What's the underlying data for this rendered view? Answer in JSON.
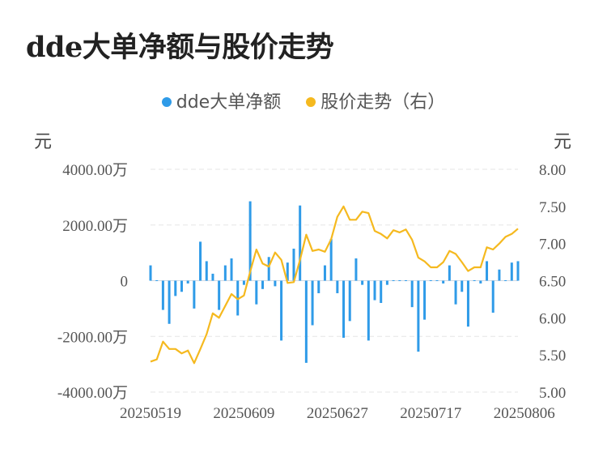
{
  "title": "dde大单净额与股价走势",
  "legend": {
    "items": [
      {
        "label": "dde大单净额",
        "color": "#2f9be8"
      },
      {
        "label": "股价走势（右）",
        "color": "#f5b91f"
      }
    ]
  },
  "units": {
    "left": "元",
    "right": "元"
  },
  "chart_data": {
    "type": "bar+line",
    "title": "dde大单净额与股价走势",
    "left_axis": {
      "ylim": [
        -4000,
        4000
      ],
      "ticks": [
        4000,
        2000,
        0,
        -2000,
        -4000
      ],
      "tick_labels": [
        "4000.00万",
        "2000.00万",
        "0",
        "-2000.00万",
        "-4000.00万"
      ],
      "unit": "元"
    },
    "right_axis": {
      "ylim": [
        5.0,
        8.0
      ],
      "ticks": [
        8.0,
        7.5,
        7.0,
        6.5,
        6.0,
        5.5,
        5.0
      ],
      "tick_labels": [
        "8.00",
        "7.50",
        "7.00",
        "6.50",
        "6.00",
        "5.50",
        "5.00"
      ],
      "unit": "元"
    },
    "x_tick_labels": [
      {
        "index": 0,
        "label": "20250519"
      },
      {
        "index": 15,
        "label": "20250609"
      },
      {
        "index": 30,
        "label": "20250627"
      },
      {
        "index": 45,
        "label": "20250717"
      },
      {
        "index": 60,
        "label": "20250806"
      }
    ],
    "grid": true,
    "legend_position": "top-center",
    "series": [
      {
        "name": "dde大单净额",
        "type": "bar",
        "axis": "left",
        "color": "#2f9be8",
        "values": [
          550,
          0,
          -1050,
          -1550,
          -550,
          -400,
          -100,
          -1000,
          1400,
          700,
          250,
          -1050,
          550,
          800,
          -1250,
          -150,
          2850,
          -850,
          -300,
          850,
          -200,
          -2150,
          650,
          1150,
          2700,
          -2950,
          -1600,
          -450,
          550,
          1500,
          -450,
          -2050,
          -1450,
          800,
          -150,
          -2150,
          -700,
          -800,
          -150,
          0,
          0,
          0,
          -950,
          -2550,
          -1400,
          0,
          0,
          -100,
          550,
          -850,
          -400,
          -1650,
          0,
          -100,
          700,
          -1150,
          400,
          0,
          650,
          700
        ]
      },
      {
        "name": "股价走势（右）",
        "type": "line",
        "axis": "right",
        "color": "#f5b91f",
        "values": [
          5.41,
          5.44,
          5.68,
          5.58,
          5.58,
          5.52,
          5.56,
          5.39,
          5.58,
          5.78,
          6.06,
          6.0,
          6.16,
          6.32,
          6.25,
          6.3,
          6.62,
          6.92,
          6.73,
          6.69,
          6.88,
          6.78,
          6.47,
          6.48,
          6.78,
          7.12,
          6.9,
          6.92,
          6.89,
          7.06,
          7.36,
          7.5,
          7.32,
          7.32,
          7.43,
          7.41,
          7.17,
          7.13,
          7.07,
          7.18,
          7.15,
          7.19,
          7.05,
          6.81,
          6.76,
          6.68,
          6.68,
          6.75,
          6.9,
          6.86,
          6.75,
          6.63,
          6.68,
          6.68,
          6.95,
          6.92,
          7.0,
          7.09,
          7.13,
          7.2
        ]
      }
    ]
  }
}
